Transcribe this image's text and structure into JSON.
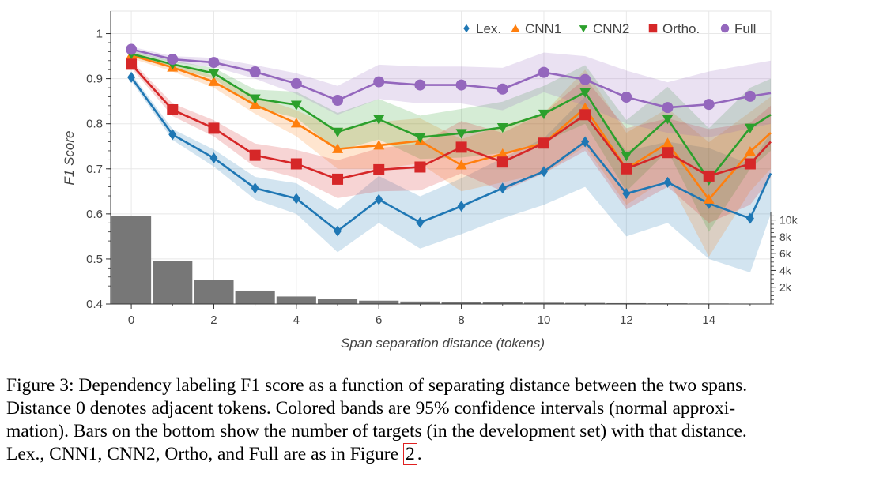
{
  "chart_data": {
    "type": "line",
    "xlabel": "Span separation distance (tokens)",
    "ylabel": "F1 Score",
    "xlim": [
      -0.5,
      15.5
    ],
    "ylim": [
      0.4,
      1.05
    ],
    "x_ticks": [
      "0",
      "2",
      "4",
      "6",
      "8",
      "10",
      "12",
      "14"
    ],
    "y_ticks": [
      "0.4",
      "0.5",
      "0.6",
      "0.7",
      "0.8",
      "0.9",
      "1"
    ],
    "x": [
      0,
      1,
      2,
      3,
      4,
      5,
      6,
      7,
      8,
      9,
      10,
      11,
      12,
      13,
      14,
      15,
      15.5
    ],
    "series": [
      {
        "name": "Lex.",
        "color": "#1f77b4",
        "marker": "diamond",
        "values": [
          0.903,
          0.776,
          0.724,
          0.657,
          0.634,
          0.562,
          0.632,
          0.581,
          0.617,
          0.657,
          0.694,
          0.76,
          0.645,
          0.67,
          0.623,
          0.59,
          0.69
        ],
        "ci_lower": [
          0.895,
          0.764,
          0.705,
          0.632,
          0.6,
          0.515,
          0.58,
          0.523,
          0.555,
          0.59,
          0.62,
          0.66,
          0.55,
          0.58,
          0.5,
          0.47,
          0.6
        ],
        "ci_upper": [
          0.911,
          0.788,
          0.743,
          0.682,
          0.668,
          0.609,
          0.684,
          0.639,
          0.679,
          0.724,
          0.768,
          0.86,
          0.74,
          0.76,
          0.746,
          0.71,
          0.78
        ]
      },
      {
        "name": "CNN1",
        "color": "#ff7f0e",
        "marker": "triangle-up",
        "values": [
          0.952,
          0.925,
          0.893,
          0.842,
          0.801,
          0.744,
          0.752,
          0.762,
          0.708,
          0.733,
          0.757,
          0.835,
          0.7,
          0.757,
          0.632,
          0.738,
          0.78
        ],
        "ci_lower": [
          0.945,
          0.916,
          0.88,
          0.822,
          0.772,
          0.7,
          0.7,
          0.712,
          0.65,
          0.67,
          0.69,
          0.75,
          0.62,
          0.68,
          0.505,
          0.65,
          0.7
        ],
        "ci_upper": [
          0.959,
          0.934,
          0.906,
          0.862,
          0.83,
          0.788,
          0.804,
          0.812,
          0.766,
          0.796,
          0.824,
          0.92,
          0.78,
          0.834,
          0.759,
          0.826,
          0.86
        ]
      },
      {
        "name": "CNN2",
        "color": "#2ca02c",
        "marker": "triangle-down",
        "values": [
          0.955,
          0.932,
          0.912,
          0.856,
          0.842,
          0.782,
          0.81,
          0.77,
          0.779,
          0.792,
          0.822,
          0.87,
          0.729,
          0.811,
          0.675,
          0.791,
          0.82
        ],
        "ci_lower": [
          0.948,
          0.924,
          0.9,
          0.836,
          0.813,
          0.74,
          0.765,
          0.722,
          0.725,
          0.735,
          0.76,
          0.8,
          0.65,
          0.74,
          0.56,
          0.7,
          0.74
        ],
        "ci_upper": [
          0.962,
          0.94,
          0.924,
          0.876,
          0.871,
          0.824,
          0.855,
          0.818,
          0.833,
          0.849,
          0.884,
          0.93,
          0.808,
          0.882,
          0.79,
          0.88,
          0.9
        ]
      },
      {
        "name": "Ortho.",
        "color": "#d62728",
        "marker": "square",
        "values": [
          0.932,
          0.831,
          0.79,
          0.73,
          0.711,
          0.677,
          0.698,
          0.704,
          0.748,
          0.715,
          0.757,
          0.82,
          0.7,
          0.736,
          0.684,
          0.711,
          0.76
        ],
        "ci_lower": [
          0.924,
          0.817,
          0.772,
          0.704,
          0.68,
          0.635,
          0.65,
          0.652,
          0.69,
          0.65,
          0.69,
          0.74,
          0.61,
          0.66,
          0.58,
          0.62,
          0.68
        ],
        "ci_upper": [
          0.94,
          0.845,
          0.808,
          0.756,
          0.742,
          0.719,
          0.746,
          0.756,
          0.806,
          0.78,
          0.824,
          0.9,
          0.79,
          0.812,
          0.788,
          0.802,
          0.84
        ]
      },
      {
        "name": "Full",
        "color": "#9467bd",
        "marker": "circle",
        "values": [
          0.965,
          0.943,
          0.936,
          0.915,
          0.889,
          0.852,
          0.893,
          0.886,
          0.886,
          0.877,
          0.914,
          0.898,
          0.859,
          0.836,
          0.843,
          0.861,
          0.868
        ],
        "ci_lower": [
          0.959,
          0.936,
          0.926,
          0.9,
          0.866,
          0.82,
          0.855,
          0.845,
          0.845,
          0.83,
          0.87,
          0.84,
          0.8,
          0.78,
          0.77,
          0.79,
          0.8
        ],
        "ci_upper": [
          0.971,
          0.95,
          0.946,
          0.93,
          0.912,
          0.884,
          0.931,
          0.927,
          0.927,
          0.924,
          0.958,
          0.95,
          0.918,
          0.892,
          0.916,
          0.932,
          0.94
        ]
      }
    ],
    "histogram": {
      "secondary_axis_ticks": [
        "2k",
        "4k",
        "6k",
        "8k",
        "10k"
      ],
      "secondary_axis_max": 11000,
      "x": [
        0,
        1,
        2,
        3,
        4,
        5,
        6,
        7,
        8,
        9,
        10,
        11,
        12,
        13,
        14,
        15
      ],
      "counts": [
        10500,
        5100,
        2900,
        1600,
        900,
        600,
        400,
        300,
        250,
        200,
        160,
        130,
        100,
        80,
        60,
        50
      ],
      "color": "#777777"
    },
    "legend_position": "top-right"
  },
  "caption": {
    "lines": [
      "Figure 3: Dependency labeling F1 score as a function of separating distance between the two spans.",
      "Distance 0 denotes adjacent tokens. Colored bands are 95% confidence intervals (normal approxi-",
      "mation). Bars on the bottom show the number of targets (in the development set) with that distance."
    ],
    "last_line_prefix": "Lex., CNN1, CNN2, Ortho, and Full are as in Figure ",
    "figure_ref": "2",
    "last_line_suffix": "."
  }
}
